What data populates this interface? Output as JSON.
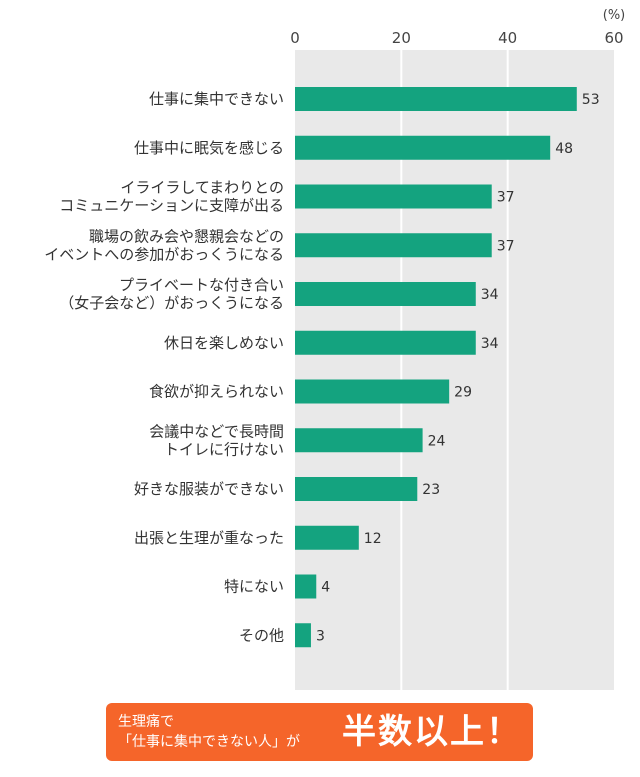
{
  "chart_data": {
    "type": "bar",
    "orientation": "horizontal",
    "unit": "(%)",
    "xlim": [
      0,
      60
    ],
    "ticks": [
      "0",
      "20",
      "40",
      "60"
    ],
    "grid": true,
    "color": "#14a37f",
    "background": "#e9e9e9",
    "categories": [
      [
        "仕事に集中できない"
      ],
      [
        "仕事中に眠気を感じる"
      ],
      [
        "イライラしてまわりとの",
        "コミュニケーションに支障が出る"
      ],
      [
        "職場の飲み会や懇親会などの",
        "イベントへの参加がおっくうになる"
      ],
      [
        "プライベートな付き合い",
        "（女子会など）がおっくうになる"
      ],
      [
        "休日を楽しめない"
      ],
      [
        "食欲が抑えられない"
      ],
      [
        "会議中などで長時間",
        "トイレに行けない"
      ],
      [
        "好きな服装ができない"
      ],
      [
        "出張と生理が重なった"
      ],
      [
        "特にない"
      ],
      [
        "その他"
      ]
    ],
    "values": [
      53,
      48,
      37,
      37,
      34,
      34,
      29,
      24,
      23,
      12,
      4,
      3
    ]
  },
  "callout": {
    "line1": "生理痛で",
    "line2": "「仕事に集中できない人」が",
    "headline": "半数以上！",
    "color": "#f5652a"
  }
}
